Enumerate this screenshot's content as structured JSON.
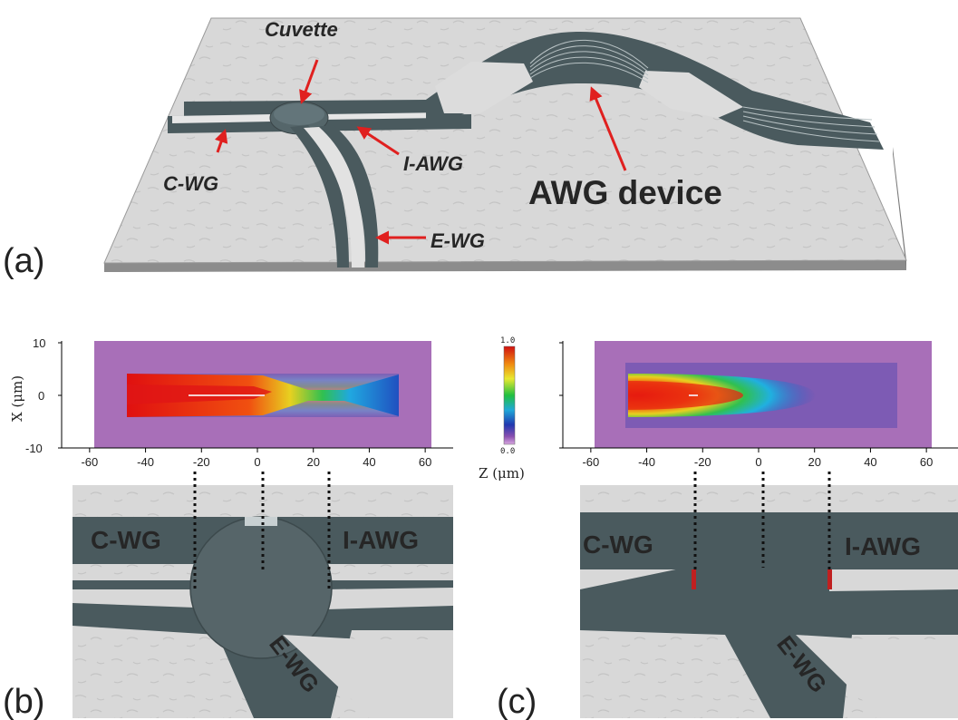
{
  "panel_labels": {
    "a": "(a)",
    "b": "(b)",
    "c": "(c)"
  },
  "labels_3d": {
    "cuvette": "Cuvette",
    "c_wg": "C-WG",
    "i_awg": "I-AWG",
    "awg_device": "AWG device",
    "e_wg": "E-WG"
  },
  "labels_b": {
    "c_wg": "C-WG",
    "i_awg": "I-AWG",
    "e_wg": "E-WG"
  },
  "labels_c": {
    "c_wg": "C-WG",
    "i_awg": "I-AWG",
    "e_wg": "E-WG"
  },
  "colorbar": {
    "max": "1.0",
    "min": "0.0"
  },
  "colors": {
    "waveguide": "#4a5a5e",
    "substrate": "#d9d9d9",
    "arrow": "#e0201f",
    "field_bg": "#a86fb8"
  },
  "chart_data": [
    {
      "type": "heatmap",
      "panel": "b",
      "xlabel": "Z (μm)",
      "ylabel": "X (μm)",
      "xlim": [
        -70,
        70
      ],
      "ylim": [
        -10,
        10
      ],
      "xticks": [
        "-60",
        "-40",
        "-20",
        "0",
        "20",
        "40",
        "60"
      ],
      "yticks": [
        "10",
        "0",
        "-10"
      ],
      "colorbar_range": [
        0.0,
        1.0
      ]
    },
    {
      "type": "heatmap",
      "panel": "c",
      "xlabel": "Z (μm)",
      "xlim": [
        -70,
        70
      ],
      "ylim": [
        -10,
        10
      ],
      "xticks": [
        "-60",
        "-40",
        "-20",
        "0",
        "20",
        "40",
        "60"
      ],
      "colorbar_range": [
        0.0,
        1.0
      ]
    }
  ]
}
